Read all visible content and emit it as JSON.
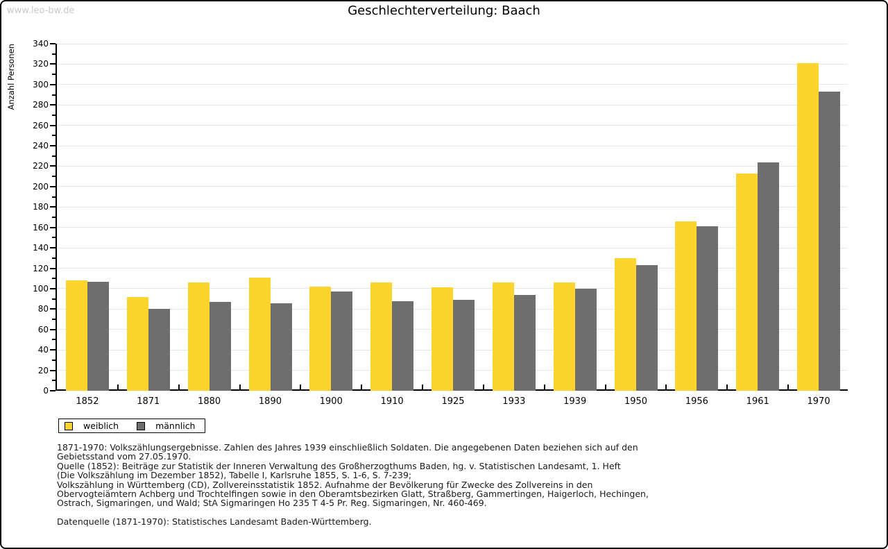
{
  "watermark": "www.leo-bw.de",
  "header": {
    "title": "Geschlechterverteilung: Baach"
  },
  "chart_data": {
    "type": "bar",
    "title": "Geschlechterverteilung: Baach",
    "xlabel": "",
    "ylabel": "Anzahl Personen",
    "ylim": [
      0,
      340
    ],
    "ytick_step": 20,
    "ytick_minor_step": 10,
    "grid": true,
    "legend_position": "bottom-left",
    "categories": [
      "1852",
      "1871",
      "1880",
      "1890",
      "1900",
      "1910",
      "1925",
      "1933",
      "1939",
      "1950",
      "1956",
      "1961",
      "1970"
    ],
    "series": [
      {
        "name": "weiblich",
        "color": "#fcd42d",
        "values": [
          108,
          92,
          106,
          111,
          102,
          106,
          101,
          106,
          106,
          130,
          166,
          213,
          321
        ]
      },
      {
        "name": "männlich",
        "color": "#6e6e6e",
        "values": [
          107,
          80,
          87,
          86,
          97,
          88,
          89,
          94,
          100,
          123,
          161,
          224,
          293
        ]
      }
    ],
    "colors": {
      "gridline": "#e6e6e6",
      "axis": "#000000"
    }
  },
  "footnotes": {
    "lines": [
      "1871-1970: Volkszählungsergebnisse. Zahlen des Jahres 1939 einschließlich Soldaten. Die angegebenen Daten beziehen sich auf den",
      "Gebietsstand vom 27.05.1970.",
      "Quelle (1852): Beiträge zur Statistik der Inneren Verwaltung des Großherzogthums Baden, hg. v. Statistischen Landesamt, 1. Heft",
      "(Die Volkszählung im Dezember 1852), Tabelle I, Karlsruhe 1855, S. 1-6, S. 7-239;",
      "Volkszählung in Württemberg (CD), Zollvereinsstatistik 1852. Aufnahme der Bevölkerung für Zwecke des Zollvereins in den",
      "Obervogteiämtern Achberg und Trochtelfingen sowie in den Oberamtsbezirken Glatt, Straßberg, Gammertingen, Haigerloch, Hechingen,",
      "Ostrach, Sigmaringen, und Wald; StA Sigmaringen Ho 235 T 4-5 Pr. Reg. Sigmaringen, Nr. 460-469."
    ],
    "datasource": "Datenquelle (1871-1970): Statistisches Landesamt Baden-Württemberg."
  }
}
